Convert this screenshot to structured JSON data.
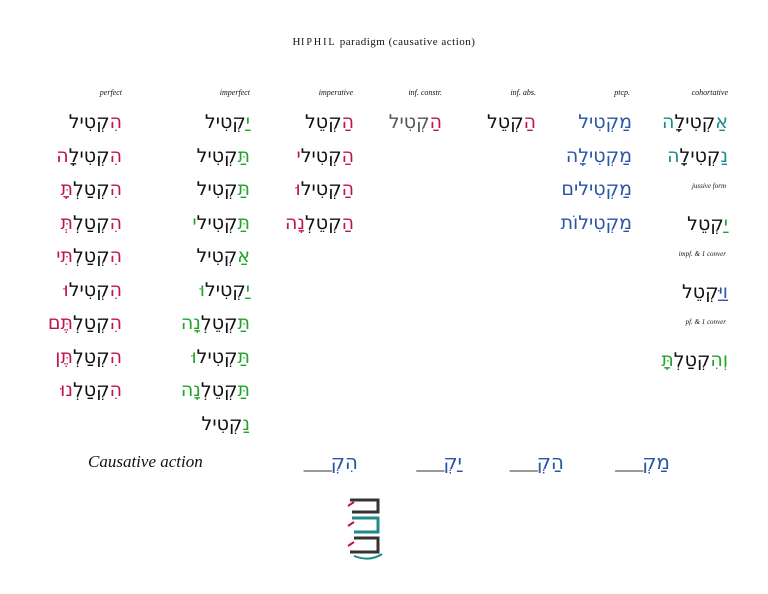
{
  "title": {
    "prefix": "H",
    "smallcaps": "IPHIL",
    "rest": " paradigm (causative action)"
  },
  "colors": {
    "red": "#c0134f",
    "green": "#22a32a",
    "blue": "#2a55a8",
    "teal": "#1e8a8a",
    "dark": "#111111",
    "gray": "#555555"
  },
  "headers": {
    "perfect": "perfect",
    "imperfect": "imperfect",
    "imperative": "imperative",
    "inf_constr": "inf. constr.",
    "inf_abs": "inf. abs.",
    "ptcp": "ptcp.",
    "cohortative": "cohortative"
  },
  "perfect": [
    {
      "pre": "הִ",
      "root": "קְטִיל",
      "suf": ""
    },
    {
      "pre": "הִ",
      "root": "קְטִילָ",
      "suf": "ה"
    },
    {
      "pre": "הִ",
      "root": "קְטַלְ",
      "suf": "תָּ"
    },
    {
      "pre": "הִ",
      "root": "קְטַלְ",
      "suf": "תְּ"
    },
    {
      "pre": "הִ",
      "root": "קְטַלְ",
      "suf": "תִּי"
    },
    {
      "pre": "הִ",
      "root": "קְטִיל",
      "suf": "וּ"
    },
    {
      "pre": "הִ",
      "root": "קְטַלְ",
      "suf": "תֶּם"
    },
    {
      "pre": "הִ",
      "root": "קְטַלְ",
      "suf": "תֶּן"
    },
    {
      "pre": "הִ",
      "root": "קְטַלְ",
      "suf": "נוּ"
    }
  ],
  "imperfect": [
    {
      "pre": "יַ",
      "root": "קְטִיל",
      "suf": ""
    },
    {
      "pre": "תַּ",
      "root": "קְטִיל",
      "suf": ""
    },
    {
      "pre": "תַּ",
      "root": "קְטִיל",
      "suf": ""
    },
    {
      "pre": "תַּ",
      "root": "קְטִיל",
      "suf": "י"
    },
    {
      "pre": "אַ",
      "root": "קְטִיל",
      "suf": ""
    },
    {
      "pre": "יַ",
      "root": "קְטִיל",
      "suf": "וּ"
    },
    {
      "pre": "תַּ",
      "root": "קְטֵלְ",
      "suf": "נָה"
    },
    {
      "pre": "תַּ",
      "root": "קְטִיל",
      "suf": "וּ"
    },
    {
      "pre": "תַּ",
      "root": "קְטֵלְ",
      "suf": "נָה"
    },
    {
      "pre": "נַ",
      "root": "קְטִיל",
      "suf": ""
    }
  ],
  "imperative": [
    {
      "pre": "הַ",
      "root": "קְטֵל",
      "suf": ""
    },
    {
      "pre": "הַ",
      "root": "קְטִיל",
      "suf": "י"
    },
    {
      "pre": "הַ",
      "root": "קְטִיל",
      "suf": "וּ"
    },
    {
      "pre": "הַ",
      "root": "קְטֵלְ",
      "suf": "נָה"
    }
  ],
  "inf_constr": {
    "pre": "הַ",
    "root": "קְטִיל",
    "suf": ""
  },
  "inf_abs": {
    "pre": "הַ",
    "root": "קְטֵל",
    "suf": ""
  },
  "ptcp": [
    {
      "pre": "מַ",
      "root": "קְטִיל",
      "suf": ""
    },
    {
      "pre": "מַ",
      "root": "קְטִילָ",
      "suf": "ה"
    },
    {
      "pre": "מַ",
      "root": "קְטִיל",
      "suf": "ים"
    },
    {
      "pre": "מַ",
      "root": "קְטִיל",
      "suf": "וֹת"
    }
  ],
  "cohortative": [
    {
      "pre": "אַ",
      "root": "קְטִילָ",
      "suf": "ה"
    },
    {
      "pre": "נַ",
      "root": "קְטִילָ",
      "suf": "ה"
    }
  ],
  "jussive": {
    "label": "jussive form",
    "pre": "יַ",
    "root": "קְטֵל",
    "suf": ""
  },
  "impf_waw": {
    "label": "impf. & 1 conver",
    "pre": "וַיַּ",
    "root": "קְטֵל",
    "suf": ""
  },
  "pf_waw": {
    "label": "pf. & 1 conver",
    "pre": "וְהִ",
    "root": "קְטַלְ",
    "suf": "תָּ"
  },
  "causative": {
    "label": "Causative action",
    "prefixes": [
      {
        "text": "הִקְ",
        "blank": "___"
      },
      {
        "text": "יַקְ",
        "blank": "___"
      },
      {
        "text": "הַקְ",
        "blank": "___"
      },
      {
        "text": "מַקְ",
        "blank": "___"
      }
    ]
  }
}
